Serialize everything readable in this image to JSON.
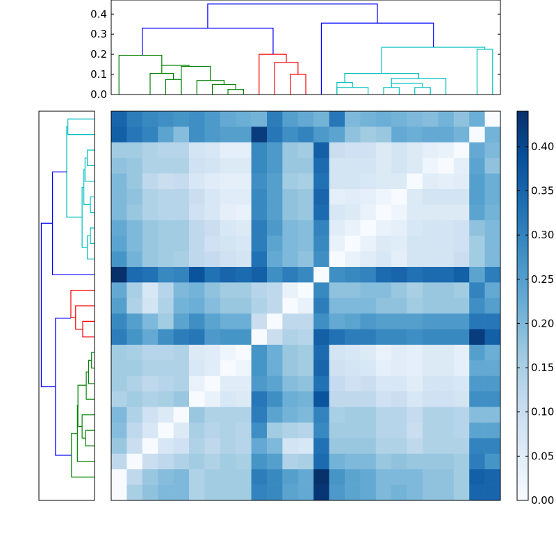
{
  "chart_data": {
    "type": "heatmap",
    "title": "",
    "xlabel": "",
    "ylabel": "",
    "colormap": "Blues",
    "vmin": 0.0,
    "vmax": 0.44,
    "cells": [
      [
        0.35,
        0.31,
        0.29,
        0.28,
        0.27,
        0.28,
        0.26,
        0.23,
        0.22,
        0.21,
        0.31,
        0.25,
        0.23,
        0.21,
        0.32,
        0.2,
        0.21,
        0.22,
        0.21,
        0.2,
        0.19,
        0.21,
        0.18,
        0.22,
        0.0
      ],
      [
        0.36,
        0.32,
        0.3,
        0.24,
        0.19,
        0.28,
        0.26,
        0.25,
        0.25,
        0.42,
        0.32,
        0.28,
        0.3,
        0.26,
        0.24,
        0.18,
        0.16,
        0.17,
        0.23,
        0.22,
        0.23,
        0.23,
        0.21,
        0.0,
        0.21
      ],
      [
        0.16,
        0.16,
        0.14,
        0.13,
        0.13,
        0.08,
        0.07,
        0.04,
        0.04,
        0.29,
        0.26,
        0.17,
        0.16,
        0.36,
        0.1,
        0.09,
        0.09,
        0.06,
        0.08,
        0.06,
        0.04,
        0.03,
        0.0,
        0.23,
        0.2
      ],
      [
        0.18,
        0.17,
        0.14,
        0.14,
        0.14,
        0.09,
        0.08,
        0.06,
        0.06,
        0.29,
        0.26,
        0.17,
        0.17,
        0.34,
        0.08,
        0.08,
        0.08,
        0.06,
        0.08,
        0.06,
        0.02,
        0.0,
        0.04,
        0.24,
        0.18
      ],
      [
        0.2,
        0.17,
        0.12,
        0.1,
        0.11,
        0.07,
        0.05,
        0.04,
        0.04,
        0.28,
        0.25,
        0.16,
        0.15,
        0.33,
        0.08,
        0.08,
        0.07,
        0.06,
        0.06,
        0.0,
        0.05,
        0.04,
        0.05,
        0.25,
        0.22
      ],
      [
        0.2,
        0.18,
        0.14,
        0.13,
        0.13,
        0.1,
        0.07,
        0.05,
        0.05,
        0.29,
        0.25,
        0.18,
        0.17,
        0.35,
        0.04,
        0.05,
        0.04,
        0.02,
        0.0,
        0.06,
        0.08,
        0.08,
        0.08,
        0.25,
        0.22
      ],
      [
        0.2,
        0.17,
        0.14,
        0.13,
        0.13,
        0.09,
        0.07,
        0.04,
        0.03,
        0.29,
        0.25,
        0.18,
        0.17,
        0.34,
        0.07,
        0.06,
        0.03,
        0.0,
        0.02,
        0.06,
        0.06,
        0.06,
        0.06,
        0.24,
        0.21
      ],
      [
        0.23,
        0.2,
        0.17,
        0.16,
        0.16,
        0.12,
        0.1,
        0.07,
        0.06,
        0.31,
        0.26,
        0.2,
        0.19,
        0.3,
        0.05,
        0.03,
        0.0,
        0.03,
        0.04,
        0.07,
        0.08,
        0.08,
        0.09,
        0.18,
        0.2
      ],
      [
        0.24,
        0.2,
        0.17,
        0.16,
        0.16,
        0.12,
        0.09,
        0.08,
        0.07,
        0.31,
        0.24,
        0.2,
        0.19,
        0.29,
        0.03,
        0.0,
        0.03,
        0.06,
        0.05,
        0.08,
        0.08,
        0.08,
        0.09,
        0.16,
        0.2
      ],
      [
        0.27,
        0.21,
        0.17,
        0.16,
        0.15,
        0.12,
        0.11,
        0.09,
        0.08,
        0.33,
        0.23,
        0.2,
        0.18,
        0.28,
        0.0,
        0.03,
        0.05,
        0.07,
        0.04,
        0.08,
        0.08,
        0.08,
        0.1,
        0.16,
        0.2
      ],
      [
        0.44,
        0.34,
        0.33,
        0.29,
        0.3,
        0.38,
        0.33,
        0.35,
        0.34,
        0.36,
        0.28,
        0.31,
        0.29,
        0.0,
        0.28,
        0.29,
        0.3,
        0.34,
        0.35,
        0.33,
        0.34,
        0.34,
        0.36,
        0.24,
        0.31
      ],
      [
        0.23,
        0.15,
        0.07,
        0.13,
        0.2,
        0.21,
        0.18,
        0.16,
        0.16,
        0.13,
        0.12,
        0.03,
        0.0,
        0.29,
        0.18,
        0.18,
        0.19,
        0.19,
        0.17,
        0.15,
        0.17,
        0.17,
        0.16,
        0.3,
        0.23
      ],
      [
        0.25,
        0.14,
        0.08,
        0.14,
        0.21,
        0.22,
        0.19,
        0.17,
        0.17,
        0.14,
        0.12,
        0.0,
        0.03,
        0.31,
        0.2,
        0.2,
        0.2,
        0.18,
        0.18,
        0.16,
        0.17,
        0.17,
        0.17,
        0.28,
        0.25
      ],
      [
        0.29,
        0.25,
        0.2,
        0.16,
        0.24,
        0.28,
        0.24,
        0.22,
        0.22,
        0.1,
        0.0,
        0.12,
        0.12,
        0.28,
        0.23,
        0.24,
        0.26,
        0.25,
        0.25,
        0.25,
        0.26,
        0.26,
        0.26,
        0.32,
        0.32
      ],
      [
        0.31,
        0.27,
        0.23,
        0.28,
        0.31,
        0.32,
        0.26,
        0.27,
        0.27,
        0.0,
        0.1,
        0.14,
        0.13,
        0.36,
        0.33,
        0.31,
        0.31,
        0.29,
        0.29,
        0.28,
        0.29,
        0.29,
        0.29,
        0.42,
        0.36
      ],
      [
        0.16,
        0.15,
        0.13,
        0.13,
        0.14,
        0.06,
        0.05,
        0.02,
        0.0,
        0.27,
        0.22,
        0.17,
        0.16,
        0.34,
        0.08,
        0.07,
        0.06,
        0.03,
        0.05,
        0.04,
        0.06,
        0.06,
        0.04,
        0.25,
        0.22
      ],
      [
        0.16,
        0.16,
        0.14,
        0.14,
        0.14,
        0.07,
        0.05,
        0.0,
        0.02,
        0.27,
        0.22,
        0.17,
        0.16,
        0.35,
        0.09,
        0.08,
        0.07,
        0.04,
        0.05,
        0.04,
        0.06,
        0.06,
        0.04,
        0.23,
        0.23
      ],
      [
        0.16,
        0.14,
        0.12,
        0.13,
        0.14,
        0.03,
        0.0,
        0.05,
        0.05,
        0.26,
        0.24,
        0.19,
        0.18,
        0.33,
        0.11,
        0.09,
        0.1,
        0.07,
        0.07,
        0.05,
        0.08,
        0.08,
        0.07,
        0.26,
        0.26
      ],
      [
        0.14,
        0.16,
        0.14,
        0.15,
        0.17,
        0.0,
        0.03,
        0.07,
        0.06,
        0.32,
        0.28,
        0.22,
        0.21,
        0.38,
        0.12,
        0.12,
        0.12,
        0.09,
        0.1,
        0.07,
        0.09,
        0.09,
        0.08,
        0.28,
        0.28
      ],
      [
        0.2,
        0.14,
        0.09,
        0.06,
        0.0,
        0.17,
        0.14,
        0.14,
        0.14,
        0.31,
        0.24,
        0.21,
        0.2,
        0.3,
        0.15,
        0.16,
        0.16,
        0.13,
        0.13,
        0.11,
        0.14,
        0.14,
        0.13,
        0.19,
        0.19
      ],
      [
        0.19,
        0.12,
        0.07,
        0.0,
        0.06,
        0.15,
        0.13,
        0.14,
        0.13,
        0.28,
        0.16,
        0.14,
        0.13,
        0.29,
        0.16,
        0.16,
        0.16,
        0.13,
        0.13,
        0.1,
        0.14,
        0.14,
        0.13,
        0.24,
        0.24
      ],
      [
        0.17,
        0.1,
        0.0,
        0.07,
        0.09,
        0.14,
        0.12,
        0.14,
        0.13,
        0.23,
        0.2,
        0.08,
        0.07,
        0.33,
        0.17,
        0.17,
        0.17,
        0.14,
        0.14,
        0.12,
        0.14,
        0.14,
        0.14,
        0.3,
        0.3
      ],
      [
        0.12,
        0.0,
        0.1,
        0.12,
        0.14,
        0.16,
        0.14,
        0.16,
        0.15,
        0.27,
        0.25,
        0.14,
        0.15,
        0.34,
        0.21,
        0.2,
        0.2,
        0.17,
        0.18,
        0.17,
        0.17,
        0.17,
        0.16,
        0.31,
        0.27
      ],
      [
        0.0,
        0.12,
        0.17,
        0.19,
        0.2,
        0.14,
        0.16,
        0.16,
        0.16,
        0.31,
        0.29,
        0.25,
        0.23,
        0.44,
        0.27,
        0.24,
        0.23,
        0.2,
        0.2,
        0.2,
        0.18,
        0.18,
        0.16,
        0.36,
        0.35
      ],
      [
        0.0,
        0.15,
        0.18,
        0.2,
        0.2,
        0.14,
        0.16,
        0.16,
        0.16,
        0.3,
        0.29,
        0.24,
        0.23,
        0.43,
        0.26,
        0.24,
        0.23,
        0.2,
        0.21,
        0.2,
        0.18,
        0.18,
        0.16,
        0.35,
        0.35
      ]
    ],
    "top_dendrogram": {
      "y_ticks": [
        "0.0",
        "0.1",
        "0.2",
        "0.3",
        "0.4"
      ],
      "ylim": [
        0,
        0.47
      ],
      "link_color_green": "#008000",
      "link_color_red": "#ff0000",
      "link_color_cyan": "#00bfbf",
      "link_color_root": "#0000ff",
      "links": [
        {
          "color": "#008000",
          "xa": 3.5,
          "ha": 0.0,
          "xb": 4.5,
          "hb": 0.0,
          "h": 0.075
        },
        {
          "color": "#008000",
          "xa": 2.5,
          "ha": 0.0,
          "xb": 4.0,
          "hb": 0.075,
          "h": 0.105
        },
        {
          "color": "#008000",
          "xa": 7.5,
          "ha": 0.0,
          "xb": 8.5,
          "hb": 0.0,
          "h": 0.025
        },
        {
          "color": "#008000",
          "xa": 6.5,
          "ha": 0.0,
          "xb": 8.0,
          "hb": 0.025,
          "h": 0.05
        },
        {
          "color": "#008000",
          "xa": 5.5,
          "ha": 0.0,
          "xb": 7.25,
          "hb": 0.05,
          "h": 0.07
        },
        {
          "color": "#008000",
          "xa": 4.5,
          "ha": 0.0,
          "xb": 6.375,
          "hb": 0.07,
          "h": 0.14
        },
        {
          "color": "#008000",
          "xa": 3.25,
          "ha": 0.105,
          "xb": 5.0,
          "hb": 0.14,
          "h": 0.145
        },
        {
          "color": "#008000",
          "xa": 0.5,
          "ha": 0.0,
          "xb": 3.25,
          "hb": 0.145,
          "h": 0.195
        },
        {
          "color": "#ff0000",
          "xa": 11.5,
          "ha": 0.0,
          "xb": 12.5,
          "hb": 0.0,
          "h": 0.1
        },
        {
          "color": "#ff0000",
          "xa": 10.5,
          "ha": 0.0,
          "xb": 12.0,
          "hb": 0.1,
          "h": 0.16
        },
        {
          "color": "#ff0000",
          "xa": 9.5,
          "ha": 0.0,
          "xb": 11.25,
          "hb": 0.16,
          "h": 0.2
        },
        {
          "color": "#00bfbf",
          "xa": 14.5,
          "ha": 0.0,
          "xb": 16.5,
          "hb": 0.0,
          "h": 0.035
        },
        {
          "color": "#00bfbf",
          "xa": 14.5,
          "ha": 0.0,
          "xb": 15.5,
          "hb": 0.035,
          "h": 0.06
        },
        {
          "color": "#00bfbf",
          "xa": 19.5,
          "ha": 0.0,
          "xb": 20.5,
          "hb": 0.0,
          "h": 0.035
        },
        {
          "color": "#00bfbf",
          "xa": 17.5,
          "ha": 0.0,
          "xb": 18.5,
          "hb": 0.0,
          "h": 0.035
        },
        {
          "color": "#00bfbf",
          "xa": 18.0,
          "ha": 0.035,
          "xb": 20.0,
          "hb": 0.035,
          "h": 0.055
        },
        {
          "color": "#00bfbf",
          "xa": 18.0,
          "ha": 0.055,
          "xb": 21.5,
          "hb": 0.0,
          "h": 0.08
        },
        {
          "color": "#00bfbf",
          "xa": 15.0,
          "ha": 0.06,
          "xb": 19.75,
          "hb": 0.08,
          "h": 0.105
        },
        {
          "color": "#00bfbf",
          "xa": 23.5,
          "ha": 0.0,
          "xb": 24.5,
          "hb": 0.0,
          "h": 0.225
        },
        {
          "color": "#00bfbf",
          "xa": 17.375,
          "ha": 0.105,
          "xb": 24.0,
          "hb": 0.225,
          "h": 0.235
        },
        {
          "color": "#0000ff",
          "xa": 13.5,
          "ha": 0.0,
          "xb": 20.7,
          "hb": 0.235,
          "h": 0.355
        },
        {
          "color": "#0000ff",
          "xa": 2.0,
          "ha": 0.195,
          "xb": 10.4,
          "hb": 0.2,
          "h": 0.33
        },
        {
          "color": "#0000ff",
          "xa": 6.2,
          "ha": 0.33,
          "xb": 17.1,
          "hb": 0.355,
          "h": 0.45
        }
      ]
    },
    "left_dendrogram": {
      "orientation": "left",
      "links": [
        {
          "color": "#00bfbf",
          "ya": 0.5,
          "ha": 0.0,
          "yb": 1.5,
          "hb": 0.0,
          "h": 0.225
        },
        {
          "color": "#00bfbf",
          "ya": 2.5,
          "ha": 0.0,
          "yb": 3.5,
          "hb": 0.0,
          "h": 0.06
        },
        {
          "color": "#00bfbf",
          "ya": 3.0,
          "ha": 0.06,
          "yb": 4.5,
          "hb": 0.0,
          "h": 0.08
        },
        {
          "color": "#00bfbf",
          "ya": 5.5,
          "ha": 0.0,
          "yb": 6.5,
          "hb": 0.0,
          "h": 0.035
        },
        {
          "color": "#00bfbf",
          "ya": 3.75,
          "ha": 0.08,
          "yb": 6.0,
          "hb": 0.035,
          "h": 0.09
        },
        {
          "color": "#00bfbf",
          "ya": 7.5,
          "ha": 0.0,
          "yb": 8.5,
          "hb": 0.0,
          "h": 0.035
        },
        {
          "color": "#00bfbf",
          "ya": 8.0,
          "ha": 0.035,
          "yb": 9.5,
          "hb": 0.0,
          "h": 0.06
        },
        {
          "color": "#00bfbf",
          "ya": 4.9,
          "ha": 0.09,
          "yb": 8.75,
          "hb": 0.06,
          "h": 0.105
        },
        {
          "color": "#00bfbf",
          "ya": 1.0,
          "ha": 0.225,
          "yb": 6.8,
          "hb": 0.105,
          "h": 0.235
        },
        {
          "color": "#0000ff",
          "ya": 3.9,
          "ha": 0.235,
          "yb": 10.5,
          "hb": 0.0,
          "h": 0.355
        },
        {
          "color": "#ff0000",
          "ya": 13.5,
          "ha": 0.0,
          "yb": 14.5,
          "hb": 0.0,
          "h": 0.1
        },
        {
          "color": "#ff0000",
          "ya": 12.5,
          "ha": 0.0,
          "yb": 14.0,
          "hb": 0.1,
          "h": 0.16
        },
        {
          "color": "#ff0000",
          "ya": 11.5,
          "ha": 0.0,
          "yb": 13.25,
          "hb": 0.16,
          "h": 0.2
        },
        {
          "color": "#008000",
          "ya": 15.5,
          "ha": 0.0,
          "yb": 16.5,
          "hb": 0.0,
          "h": 0.025
        },
        {
          "color": "#008000",
          "ya": 16.0,
          "ha": 0.025,
          "yb": 17.5,
          "hb": 0.0,
          "h": 0.05
        },
        {
          "color": "#008000",
          "ya": 16.75,
          "ha": 0.05,
          "yb": 18.5,
          "hb": 0.0,
          "h": 0.07
        },
        {
          "color": "#008000",
          "ya": 20.5,
          "ha": 0.0,
          "yb": 21.5,
          "hb": 0.0,
          "h": 0.075
        },
        {
          "color": "#008000",
          "ya": 19.5,
          "ha": 0.0,
          "yb": 21.0,
          "hb": 0.075,
          "h": 0.105
        },
        {
          "color": "#008000",
          "ya": 17.6,
          "ha": 0.07,
          "yb": 20.25,
          "hb": 0.105,
          "h": 0.14
        },
        {
          "color": "#008000",
          "ya": 18.9,
          "ha": 0.14,
          "yb": 22.5,
          "hb": 0.0,
          "h": 0.145
        },
        {
          "color": "#008000",
          "ya": 20.7,
          "ha": 0.145,
          "yb": 23.5,
          "hb": 0.0,
          "h": 0.195
        },
        {
          "color": "#0000ff",
          "ya": 13.3,
          "ha": 0.2,
          "yb": 22.1,
          "hb": 0.195,
          "h": 0.33
        },
        {
          "color": "#0000ff",
          "ya": 7.2,
          "ha": 0.355,
          "yb": 17.7,
          "hb": 0.33,
          "h": 0.45
        }
      ]
    },
    "colorbar": {
      "ticks": [
        "0.00",
        "0.05",
        "0.10",
        "0.15",
        "0.20",
        "0.25",
        "0.30",
        "0.35",
        "0.40"
      ],
      "tick_values": [
        0.0,
        0.05,
        0.1,
        0.15,
        0.2,
        0.25,
        0.3,
        0.35,
        0.4
      ]
    }
  }
}
